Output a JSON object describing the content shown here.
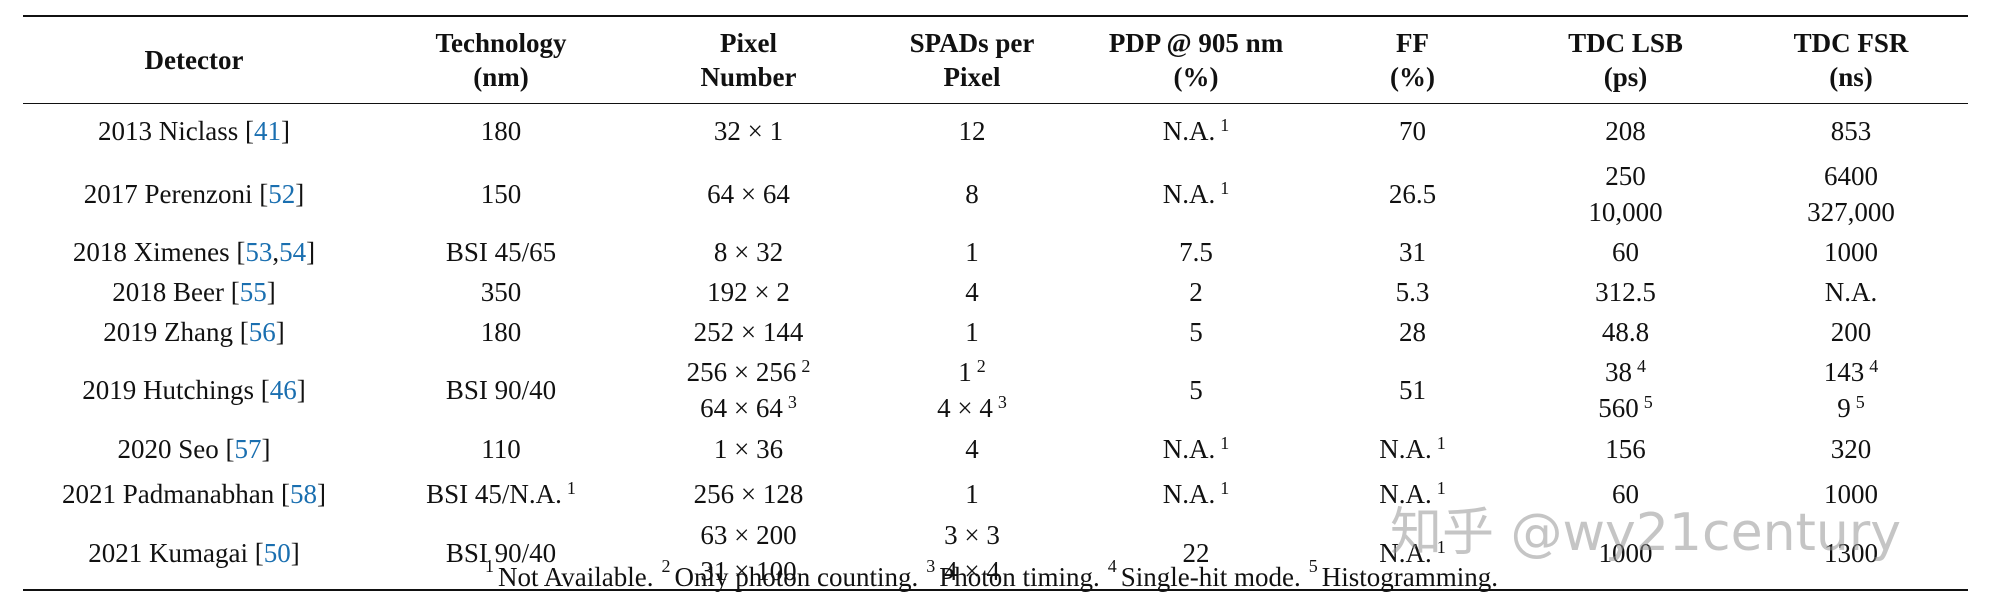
{
  "table": {
    "header": [
      "Detector",
      [
        "Technology",
        "(nm)"
      ],
      [
        "Pixel",
        "Number"
      ],
      [
        "SPADs per",
        "Pixel"
      ],
      [
        "PDP @ 905 nm",
        "(%)"
      ],
      [
        "FF",
        "(%)"
      ],
      [
        "TDC LSB",
        "(ps)"
      ],
      [
        "TDC FSR",
        "(ns)"
      ]
    ],
    "rows": [
      [
        {
          "name": "2013 Niclass",
          "cite": [
            "[",
            "41",
            "]"
          ]
        },
        [
          "180"
        ],
        [
          "32 × 1"
        ],
        [
          "12"
        ],
        [
          {
            "text": "N.A.",
            "sup": "1"
          }
        ],
        [
          "70"
        ],
        [
          "208"
        ],
        [
          "853"
        ]
      ],
      [
        {
          "name": "2017 Perenzoni",
          "cite": [
            "[",
            "52",
            "]"
          ]
        },
        [
          "150"
        ],
        [
          "64 × 64"
        ],
        [
          "8"
        ],
        [
          {
            "text": "N.A.",
            "sup": "1"
          }
        ],
        [
          "26.5"
        ],
        [
          "250",
          "10,000"
        ],
        [
          "6400",
          "327,000"
        ]
      ],
      [
        {
          "name": "2018 Ximenes",
          "cite": [
            "[",
            "53",
            ",",
            "54",
            "]"
          ]
        },
        [
          "BSI 45/65"
        ],
        [
          "8 × 32"
        ],
        [
          "1"
        ],
        [
          "7.5"
        ],
        [
          "31"
        ],
        [
          "60"
        ],
        [
          "1000"
        ]
      ],
      [
        {
          "name": "2018 Beer",
          "cite": [
            "[",
            "55",
            "]"
          ]
        },
        [
          "350"
        ],
        [
          "192 × 2"
        ],
        [
          "4"
        ],
        [
          "2"
        ],
        [
          "5.3"
        ],
        [
          "312.5"
        ],
        [
          "N.A."
        ]
      ],
      [
        {
          "name": "2019 Zhang",
          "cite": [
            "[",
            "56",
            "]"
          ]
        },
        [
          "180"
        ],
        [
          "252 × 144"
        ],
        [
          "1"
        ],
        [
          "5"
        ],
        [
          "28"
        ],
        [
          "48.8"
        ],
        [
          "200"
        ]
      ],
      [
        {
          "name": "2019 Hutchings",
          "cite": [
            "[",
            "46",
            "]"
          ]
        },
        [
          "BSI 90/40"
        ],
        [
          {
            "text": "256 × 256",
            "sup": "2"
          },
          {
            "text": "64 × 64",
            "sup": "3"
          }
        ],
        [
          {
            "text": "1",
            "sup": "2"
          },
          {
            "text": "4 × 4",
            "sup": "3"
          }
        ],
        [
          "5"
        ],
        [
          "51"
        ],
        [
          {
            "text": "38",
            "sup": "4"
          },
          {
            "text": "560",
            "sup": "5"
          }
        ],
        [
          {
            "text": "143",
            "sup": "4"
          },
          {
            "text": "9",
            "sup": "5"
          }
        ]
      ],
      [
        {
          "name": "2020 Seo",
          "cite": [
            "[",
            "57",
            "]"
          ]
        },
        [
          "110"
        ],
        [
          "1 × 36"
        ],
        [
          "4"
        ],
        [
          {
            "text": "N.A.",
            "sup": "1"
          }
        ],
        [
          {
            "text": "N.A.",
            "sup": "1"
          }
        ],
        [
          "156"
        ],
        [
          "320"
        ]
      ],
      [
        {
          "name": "2021 Padmanabhan",
          "cite": [
            "[",
            "58",
            "]"
          ]
        },
        [
          {
            "text": "BSI 45/N.A.",
            "sup": "1"
          }
        ],
        [
          "256 × 128"
        ],
        [
          "1"
        ],
        [
          {
            "text": "N.A.",
            "sup": "1"
          }
        ],
        [
          {
            "text": "N.A.",
            "sup": "1"
          }
        ],
        [
          "60"
        ],
        [
          "1000"
        ]
      ],
      [
        {
          "name": "2021 Kumagai",
          "cite": [
            "[",
            "50",
            "]"
          ]
        },
        [
          "BSI 90/40"
        ],
        [
          "63 × 200",
          "31 × 100"
        ],
        [
          "3 × 3",
          "4 × 4"
        ],
        [
          "22"
        ],
        [
          {
            "text": "N.A.",
            "sup": "1"
          }
        ],
        [
          "1000"
        ],
        [
          "1300"
        ]
      ]
    ],
    "footnotes": [
      {
        "mark": "1",
        "text": "Not Available."
      },
      {
        "mark": "2",
        "text": "Only photon counting."
      },
      {
        "mark": "3",
        "text": "Photon timing."
      },
      {
        "mark": "4",
        "text": "Single-hit mode."
      },
      {
        "mark": "5",
        "text": "Histogramming."
      }
    ]
  },
  "watermark": "知乎 @wy21century"
}
